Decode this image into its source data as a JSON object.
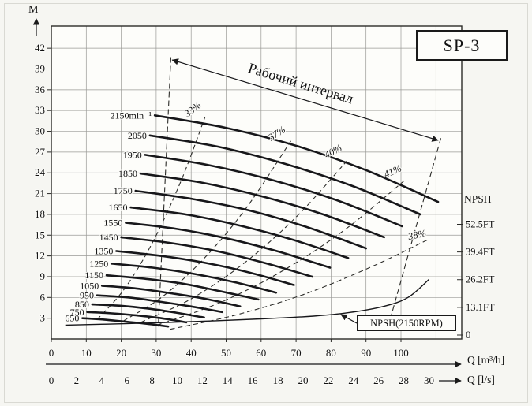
{
  "chart_data": {
    "type": "line",
    "title": "SP-3",
    "x_axis": {
      "label": "Q [m³/h]",
      "unit": "m³/h",
      "ticks": [
        0,
        10,
        20,
        30,
        40,
        50,
        60,
        70,
        80,
        90,
        100
      ],
      "range": [
        0,
        117
      ]
    },
    "x_axis_secondary": {
      "label": "Q [l/s]",
      "unit": "l/s",
      "ticks": [
        0,
        2,
        4,
        6,
        8,
        10,
        12,
        14,
        16,
        18,
        20,
        22,
        24,
        26,
        28,
        30
      ]
    },
    "y_axis": {
      "label": "M",
      "unit": "m",
      "ticks": [
        3,
        6,
        9,
        12,
        15,
        18,
        21,
        24,
        27,
        30,
        33,
        36,
        39,
        42
      ],
      "range": [
        0,
        45.2
      ]
    },
    "y_axis_right": {
      "label": "NPSH",
      "ticks": [
        {
          "label": "52.5FT",
          "m": 16
        },
        {
          "label": "39.4FT",
          "m": 12
        },
        {
          "label": "26.2FT",
          "m": 8
        },
        {
          "label": "13.1FT",
          "m": 4
        },
        {
          "label": "0",
          "m": 0
        }
      ]
    },
    "pump_curves": [
      {
        "rpm": 2150,
        "label": "2150min⁻¹",
        "points": [
          [
            29.6,
            32.3
          ],
          [
            49.9,
            30.5
          ],
          [
            70.1,
            27.9
          ],
          [
            90.4,
            24.3
          ],
          [
            110.6,
            19.8
          ]
        ]
      },
      {
        "rpm": 2050,
        "label": "2050",
        "points": [
          [
            28.2,
            29.4
          ],
          [
            47.5,
            27.8
          ],
          [
            66.8,
            25.3
          ],
          [
            86.1,
            22.1
          ],
          [
            105.5,
            18.0
          ]
        ]
      },
      {
        "rpm": 1950,
        "label": "1950",
        "points": [
          [
            26.8,
            26.6
          ],
          [
            45.2,
            25.1
          ],
          [
            63.6,
            22.9
          ],
          [
            81.9,
            20.0
          ],
          [
            100.3,
            16.3
          ]
        ]
      },
      {
        "rpm": 1850,
        "label": "1850",
        "points": [
          [
            25.5,
            23.9
          ],
          [
            42.9,
            22.6
          ],
          [
            60.3,
            20.6
          ],
          [
            77.7,
            18.0
          ],
          [
            95.2,
            14.7
          ]
        ]
      },
      {
        "rpm": 1750,
        "label": "1750",
        "points": [
          [
            24.1,
            21.4
          ],
          [
            40.6,
            20.2
          ],
          [
            57.1,
            18.5
          ],
          [
            73.5,
            16.1
          ],
          [
            90.0,
            13.1
          ]
        ]
      },
      {
        "rpm": 1650,
        "label": "1650",
        "points": [
          [
            22.7,
            19.0
          ],
          [
            38.3,
            18.0
          ],
          [
            53.8,
            16.4
          ],
          [
            69.3,
            14.3
          ],
          [
            84.9,
            11.7
          ]
        ]
      },
      {
        "rpm": 1550,
        "label": "1550",
        "points": [
          [
            21.3,
            16.8
          ],
          [
            35.9,
            15.9
          ],
          [
            50.5,
            14.5
          ],
          [
            65.1,
            12.6
          ],
          [
            79.7,
            10.3
          ]
        ]
      },
      {
        "rpm": 1450,
        "label": "1450",
        "points": [
          [
            20.0,
            14.7
          ],
          [
            33.6,
            13.9
          ],
          [
            47.3,
            12.7
          ],
          [
            60.9,
            11.0
          ],
          [
            74.6,
            9.0
          ]
        ]
      },
      {
        "rpm": 1350,
        "label": "1350",
        "points": [
          [
            18.6,
            12.7
          ],
          [
            31.3,
            12.0
          ],
          [
            44.0,
            11.0
          ],
          [
            56.7,
            9.6
          ],
          [
            69.4,
            7.8
          ]
        ]
      },
      {
        "rpm": 1250,
        "label": "1250",
        "points": [
          [
            17.2,
            10.9
          ],
          [
            29.0,
            10.3
          ],
          [
            40.8,
            9.4
          ],
          [
            52.5,
            8.2
          ],
          [
            64.3,
            6.7
          ]
        ]
      },
      {
        "rpm": 1150,
        "label": "1150",
        "points": [
          [
            15.8,
            9.2
          ],
          [
            26.7,
            8.7
          ],
          [
            37.5,
            8.0
          ],
          [
            48.3,
            6.9
          ],
          [
            59.2,
            5.7
          ]
        ]
      },
      {
        "rpm": 1050,
        "label": "1050",
        "points": [
          [
            14.5,
            7.7
          ],
          [
            24.3,
            7.3
          ],
          [
            34.2,
            6.6
          ],
          [
            44.1,
            5.8
          ],
          [
            54.0,
            4.7
          ]
        ]
      },
      {
        "rpm": 950,
        "label": "950",
        "points": [
          [
            13.1,
            6.3
          ],
          [
            22.0,
            6.0
          ],
          [
            31.0,
            5.4
          ],
          [
            39.9,
            4.7
          ],
          [
            48.9,
            3.9
          ]
        ]
      },
      {
        "rpm": 850,
        "label": "850",
        "points": [
          [
            11.7,
            5.0
          ],
          [
            19.7,
            4.8
          ],
          [
            27.7,
            4.4
          ],
          [
            35.7,
            3.8
          ],
          [
            43.7,
            3.1
          ]
        ]
      },
      {
        "rpm": 750,
        "label": "750",
        "points": [
          [
            10.3,
            3.9
          ],
          [
            17.4,
            3.7
          ],
          [
            24.5,
            3.4
          ],
          [
            31.5,
            3.0
          ],
          [
            38.6,
            2.4
          ]
        ]
      },
      {
        "rpm": 650,
        "label": "650",
        "points": [
          [
            8.9,
            3.0
          ],
          [
            15.1,
            2.8
          ],
          [
            21.2,
            2.5
          ],
          [
            27.3,
            2.2
          ],
          [
            33.4,
            1.8
          ]
        ]
      }
    ],
    "efficiency_lines": [
      {
        "label": "33%",
        "points": [
          [
            13.1,
            2.8
          ],
          [
            21,
            7.3
          ],
          [
            29,
            14.0
          ],
          [
            37,
            22.7
          ],
          [
            44,
            32.1
          ]
        ],
        "label_pos": [
          41,
          32.8
        ],
        "label_rotate": -38
      },
      {
        "label": "37%",
        "points": [
          [
            20.6,
            2.6
          ],
          [
            32,
            6.2
          ],
          [
            44,
            11.8
          ],
          [
            56,
            19.1
          ],
          [
            68.5,
            28.6
          ]
        ],
        "label_pos": [
          65,
          29.3
        ],
        "label_rotate": -33
      },
      {
        "label": "40%",
        "points": [
          [
            25.6,
            2.4
          ],
          [
            40,
            5.8
          ],
          [
            55,
            10.9
          ],
          [
            70,
            17.6
          ],
          [
            84.5,
            25.7
          ]
        ],
        "label_pos": [
          81,
          26.7
        ],
        "label_rotate": -28
      },
      {
        "label": "41%",
        "points": [
          [
            30.2,
            2.0
          ],
          [
            48,
            5.2
          ],
          [
            66,
            9.8
          ],
          [
            84,
            15.8
          ],
          [
            101.5,
            23.1
          ]
        ],
        "label_pos": [
          98,
          23.8
        ],
        "label_rotate": -24
      },
      {
        "label": "38%",
        "points": [
          [
            34,
            1.4
          ],
          [
            53,
            3.5
          ],
          [
            72,
            6.4
          ],
          [
            91,
            10.3
          ],
          [
            107.5,
            14.3
          ]
        ],
        "label_pos": [
          104.8,
          14.6
        ],
        "label_rotate": -12
      }
    ],
    "npsh_curve": {
      "label": "NPSH(2150RPM)",
      "points": [
        [
          4,
          2.0
        ],
        [
          20,
          2.2
        ],
        [
          40,
          2.5
        ],
        [
          60,
          2.9
        ],
        [
          75,
          3.3
        ],
        [
          85,
          3.8
        ],
        [
          95,
          4.7
        ],
        [
          102,
          6.0
        ],
        [
          108,
          8.6
        ]
      ]
    },
    "working_interval": {
      "label": "Рабочий интервал",
      "arrow": [
        [
          34.6,
          40.3
        ],
        [
          110.6,
          28.7
        ]
      ],
      "left_boundary": [
        [
          34.2,
          40.7
        ],
        [
          30.6,
          1.8
        ]
      ],
      "right_boundary": [
        [
          111.4,
          29.0
        ],
        [
          96.5,
          2.1
        ]
      ]
    }
  }
}
